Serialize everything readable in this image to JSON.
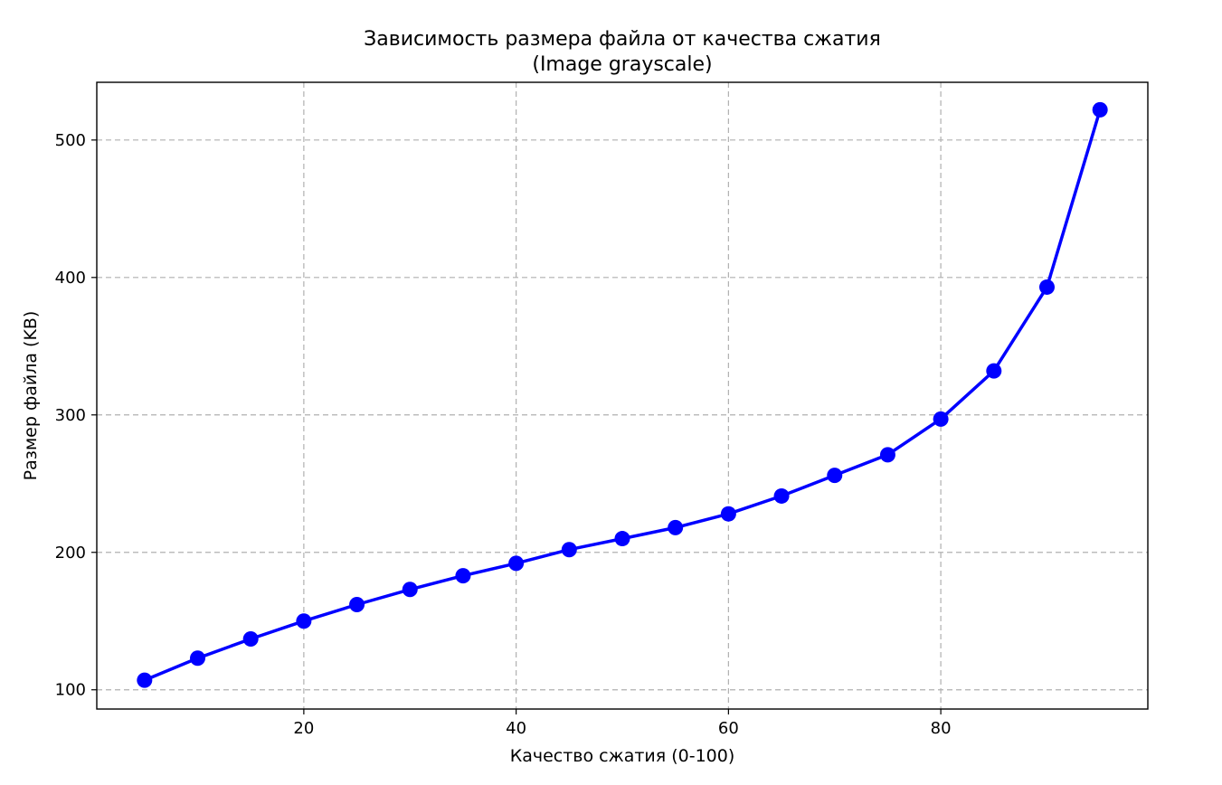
{
  "chart_data": {
    "type": "line",
    "title": "Зависимость размера файла от качества сжатия",
    "subtitle": "(Image grayscale)",
    "xlabel": "Качество сжатия (0-100)",
    "ylabel": "Размер файла (KB)",
    "xlim": [
      0.5,
      99.5
    ],
    "ylim": [
      86,
      542
    ],
    "xticks": [
      20,
      40,
      60,
      80
    ],
    "yticks": [
      100,
      200,
      300,
      400,
      500
    ],
    "grid": true,
    "color": "#0000ff",
    "series": [
      {
        "x": [
          5,
          10,
          15,
          20,
          25,
          30,
          35,
          40,
          45,
          50,
          55,
          60,
          65,
          70,
          75,
          80,
          85,
          90,
          95
        ],
        "values": [
          107,
          123,
          137,
          150,
          162,
          173,
          183,
          192,
          202,
          210,
          218,
          228,
          241,
          256,
          271,
          297,
          332,
          393,
          522
        ]
      }
    ]
  }
}
